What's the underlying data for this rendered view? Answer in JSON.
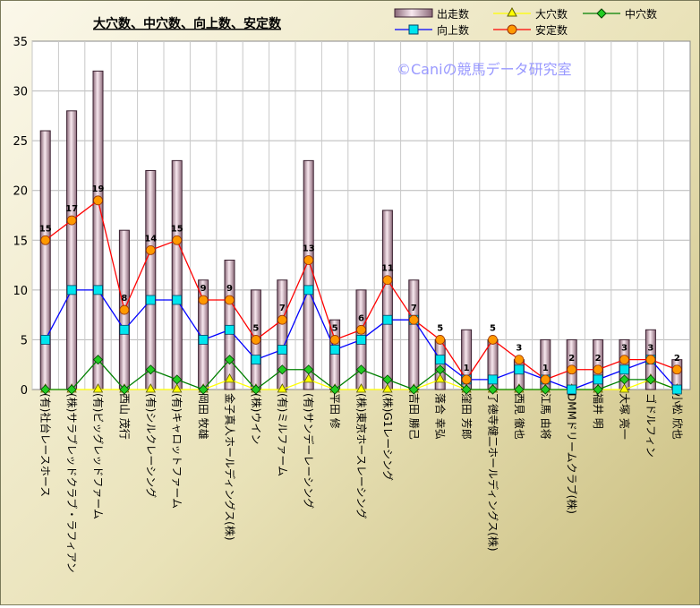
{
  "chart_data": {
    "type": "bar",
    "title": "大穴数、中穴数、向上数、安定数",
    "watermark": "©Caniの競馬データ研究室",
    "ylim": [
      0,
      35
    ],
    "yticks": [
      0,
      5,
      10,
      15,
      20,
      25,
      30,
      35
    ],
    "grid": true,
    "legend_position": "top-right",
    "categories": [
      "(有)社台レースホース",
      "(株)サラブレッドクラブ・ラフィアン",
      "(有)ビッグレッドファーム",
      "西山 茂行",
      "(有)シルクレーシング",
      "(有)キャロットファーム",
      "岡田 牧雄",
      "金子真人ホールディングス(株)",
      "(株)ウイン",
      "(有)ミルファーム",
      "(有)サンデーレーシング",
      "平田 修",
      "(株)東京ホースレーシング",
      "(株)G1レーシング",
      "吉田 勝己",
      "落合 幸弘",
      "窪田 芳郎",
      "了徳寺健二ホールディングス(株)",
      "西見 徹也",
      "江馬 由将",
      "DMMドリームクラブ(株)",
      "福井 明",
      "大塚 亮一",
      "ゴドルフィン",
      "小松 欣也"
    ],
    "series": [
      {
        "name": "出走数",
        "kind": "bar",
        "color": "#f3e3ea",
        "values": [
          26,
          28,
          32,
          16,
          22,
          23,
          11,
          13,
          10,
          11,
          23,
          7,
          10,
          18,
          11,
          5,
          6,
          5,
          3,
          5,
          5,
          5,
          5,
          6,
          3
        ]
      },
      {
        "name": "大穴数",
        "kind": "line",
        "color": "#ffff00",
        "values": [
          0,
          0,
          0,
          0,
          0,
          0,
          0,
          1,
          0,
          0,
          1,
          0,
          0,
          0,
          0,
          1,
          0,
          0,
          0,
          0,
          0,
          0,
          0,
          1,
          0
        ]
      },
      {
        "name": "中穴数",
        "kind": "line",
        "color": "#008000",
        "values": [
          0,
          0,
          3,
          0,
          2,
          1,
          0,
          3,
          0,
          2,
          2,
          0,
          2,
          1,
          0,
          2,
          0,
          0,
          0,
          0,
          0,
          0,
          1,
          1,
          0
        ]
      },
      {
        "name": "向上数",
        "kind": "line",
        "color": "#0000ff",
        "values": [
          5,
          10,
          10,
          6,
          9,
          9,
          5,
          6,
          3,
          4,
          10,
          4,
          5,
          7,
          7,
          3,
          1,
          1,
          2,
          1,
          0,
          1,
          2,
          3,
          0
        ]
      },
      {
        "name": "安定数",
        "kind": "line",
        "color": "#ff0000",
        "values": [
          15,
          17,
          19,
          8,
          14,
          15,
          9,
          9,
          5,
          7,
          13,
          5,
          6,
          11,
          7,
          5,
          1,
          5,
          3,
          1,
          2,
          2,
          3,
          3,
          2
        ],
        "data_labels": [
          15,
          17,
          19,
          8,
          14,
          15,
          9,
          9,
          5,
          7,
          13,
          5,
          6,
          11,
          7,
          5,
          1,
          5,
          3,
          1,
          2,
          2,
          3,
          3,
          2
        ]
      }
    ]
  }
}
